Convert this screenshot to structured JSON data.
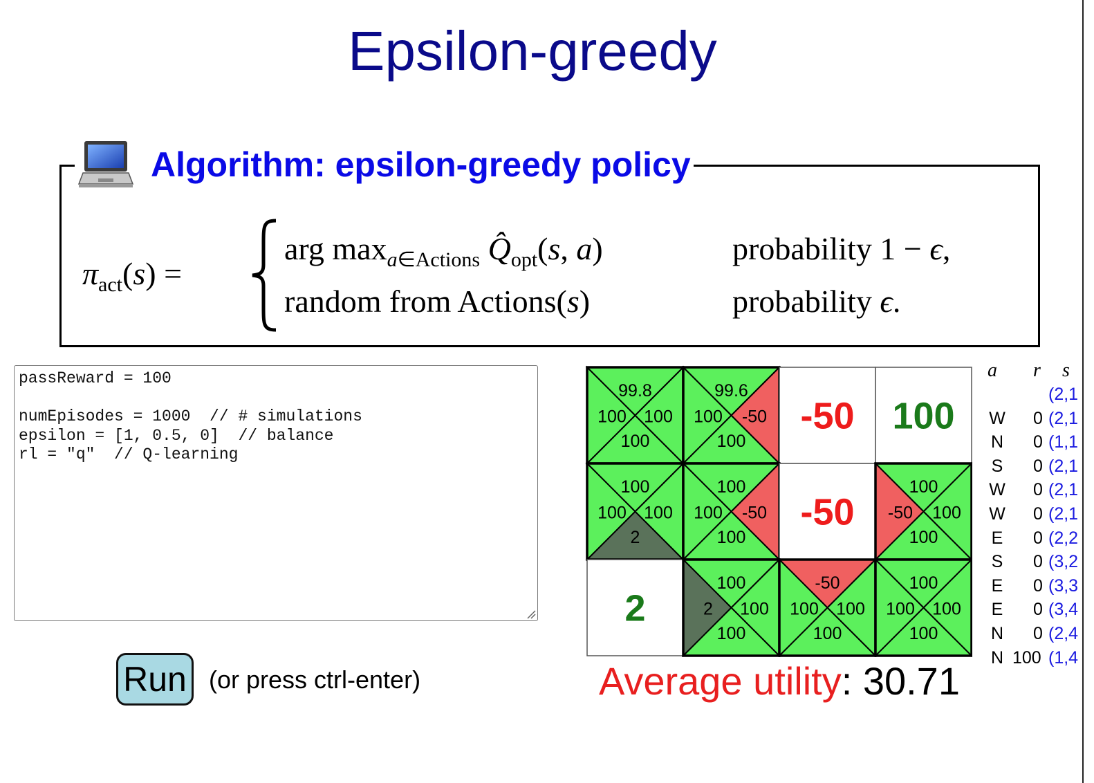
{
  "slide": {
    "title": "Epsilon-greedy",
    "algorithm_title": "Algorithm: epsilon-greedy policy",
    "icon": "laptop-icon",
    "formula": {
      "lhs": "π_act(s) =",
      "case1_expr": "arg max_{a∈Actions} Q̂_opt(s, a)",
      "case1_cond": "probability 1 − ϵ,",
      "case2_expr": "random from Actions(s)",
      "case2_cond": "probability ϵ."
    }
  },
  "editor": {
    "code": "passReward = 100\n\nnumEpisodes = 1000  // # simulations\nepsilon = [1, 0.5, 0]  // balance\nrl = \"q\"  // Q-learning"
  },
  "run": {
    "label": "Run",
    "hint": "(or press ctrl-enter)"
  },
  "grid": {
    "rows": 3,
    "cols": 4,
    "colors": {
      "positive": "#5cf05c",
      "negative": "#f06060",
      "dark": "#5a725a",
      "reward_red": "#ee1c1c",
      "reward_green": "#1a7a1a"
    },
    "cells": [
      {
        "r": 0,
        "c": 0,
        "type": "q",
        "N": "99.8",
        "W": "100",
        "E": "100",
        "S": "100",
        "fill": {
          "N": "positive",
          "W": "positive",
          "E": "positive",
          "S": "positive"
        }
      },
      {
        "r": 0,
        "c": 1,
        "type": "q",
        "N": "99.6",
        "W": "100",
        "E": "-50",
        "S": "100",
        "fill": {
          "N": "positive",
          "W": "positive",
          "E": "negative",
          "S": "positive"
        }
      },
      {
        "r": 0,
        "c": 2,
        "type": "reward",
        "value": "-50",
        "color": "reward_red"
      },
      {
        "r": 0,
        "c": 3,
        "type": "reward",
        "value": "100",
        "color": "reward_green"
      },
      {
        "r": 1,
        "c": 0,
        "type": "q",
        "N": "100",
        "W": "100",
        "E": "100",
        "S": "2",
        "fill": {
          "N": "positive",
          "W": "positive",
          "E": "positive",
          "S": "dark"
        }
      },
      {
        "r": 1,
        "c": 1,
        "type": "q",
        "N": "100",
        "W": "100",
        "E": "-50",
        "S": "100",
        "fill": {
          "N": "positive",
          "W": "positive",
          "E": "negative",
          "S": "positive"
        }
      },
      {
        "r": 1,
        "c": 2,
        "type": "reward",
        "value": "-50",
        "color": "reward_red"
      },
      {
        "r": 1,
        "c": 3,
        "type": "q",
        "N": "100",
        "W": "-50",
        "E": "100",
        "S": "100",
        "fill": {
          "N": "positive",
          "W": "negative",
          "E": "positive",
          "S": "positive"
        }
      },
      {
        "r": 2,
        "c": 0,
        "type": "reward",
        "value": "2",
        "color": "reward_green"
      },
      {
        "r": 2,
        "c": 1,
        "type": "q",
        "N": "100",
        "W": "2",
        "E": "100",
        "S": "100",
        "fill": {
          "N": "positive",
          "W": "dark",
          "E": "positive",
          "S": "positive"
        }
      },
      {
        "r": 2,
        "c": 2,
        "type": "q",
        "N": "-50",
        "W": "100",
        "E": "100",
        "S": "100",
        "fill": {
          "N": "negative",
          "W": "positive",
          "E": "positive",
          "S": "positive"
        }
      },
      {
        "r": 2,
        "c": 3,
        "type": "q",
        "N": "100",
        "W": "100",
        "E": "100",
        "S": "100",
        "fill": {
          "N": "positive",
          "W": "positive",
          "E": "positive",
          "S": "positive"
        }
      }
    ]
  },
  "average": {
    "label": "Average utility",
    "value": ": 30.71"
  },
  "trace": {
    "headers": {
      "a": "a",
      "r": "r",
      "s": "s"
    },
    "rows": [
      {
        "a": "",
        "r": "",
        "s": "(2,1"
      },
      {
        "a": "W",
        "r": "0",
        "s": "(2,1"
      },
      {
        "a": "N",
        "r": "0",
        "s": "(1,1"
      },
      {
        "a": "S",
        "r": "0",
        "s": "(2,1"
      },
      {
        "a": "W",
        "r": "0",
        "s": "(2,1"
      },
      {
        "a": "W",
        "r": "0",
        "s": "(2,1"
      },
      {
        "a": "E",
        "r": "0",
        "s": "(2,2"
      },
      {
        "a": "S",
        "r": "0",
        "s": "(3,2"
      },
      {
        "a": "E",
        "r": "0",
        "s": "(3,3"
      },
      {
        "a": "E",
        "r": "0",
        "s": "(3,4"
      },
      {
        "a": "N",
        "r": "0",
        "s": "(2,4"
      },
      {
        "a": "N",
        "r": "100",
        "s": "(1,4"
      }
    ]
  }
}
